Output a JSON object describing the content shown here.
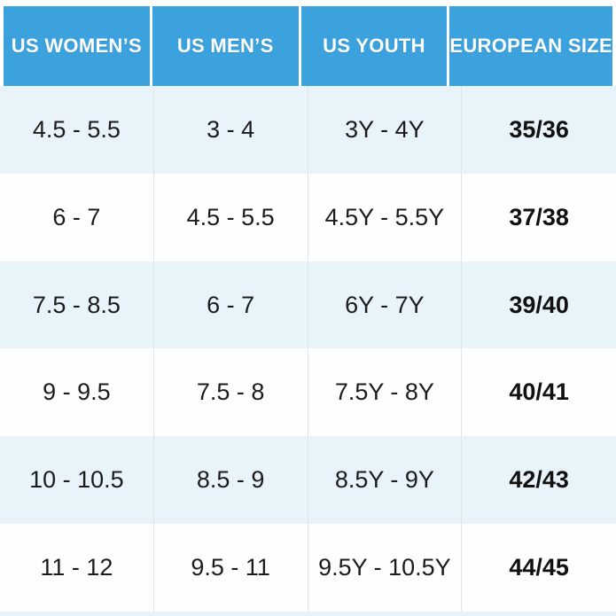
{
  "chart_data": {
    "type": "table",
    "title": "",
    "columns": [
      "US WOMEN’S",
      "US MEN’S",
      "US YOUTH",
      "EUROPEAN SIZE"
    ],
    "rows": [
      [
        "4.5 - 5.5",
        "3 - 4",
        "3Y - 4Y",
        "35/36"
      ],
      [
        "6 - 7",
        "4.5 - 5.5",
        "4.5Y - 5.5Y",
        "37/38"
      ],
      [
        "7.5 - 8.5",
        "6 - 7",
        "6Y - 7Y",
        "39/40"
      ],
      [
        "9 - 9.5",
        "7.5 - 8",
        "7.5Y - 8Y",
        "40/41"
      ],
      [
        "10 - 10.5",
        "8.5 - 9",
        "8.5Y - 9Y",
        "42/43"
      ],
      [
        "11 - 12",
        "9.5 - 11",
        "9.5Y - 10.5Y",
        "44/45"
      ]
    ],
    "layout": {
      "header_position": "top",
      "row_striping": "odd-rows-light-blue",
      "bold_column": "EUROPEAN SIZE"
    }
  },
  "colors": {
    "header_bg": "#3CA2DE",
    "header_text": "#FFFFFF",
    "row_alt_bg": "#E9F3FA",
    "row_bg": "#FEFEFF",
    "body_text": "#1C1C1C",
    "column_divider": "#DFE6EB",
    "bottom_strip": "#E8F1F8"
  }
}
